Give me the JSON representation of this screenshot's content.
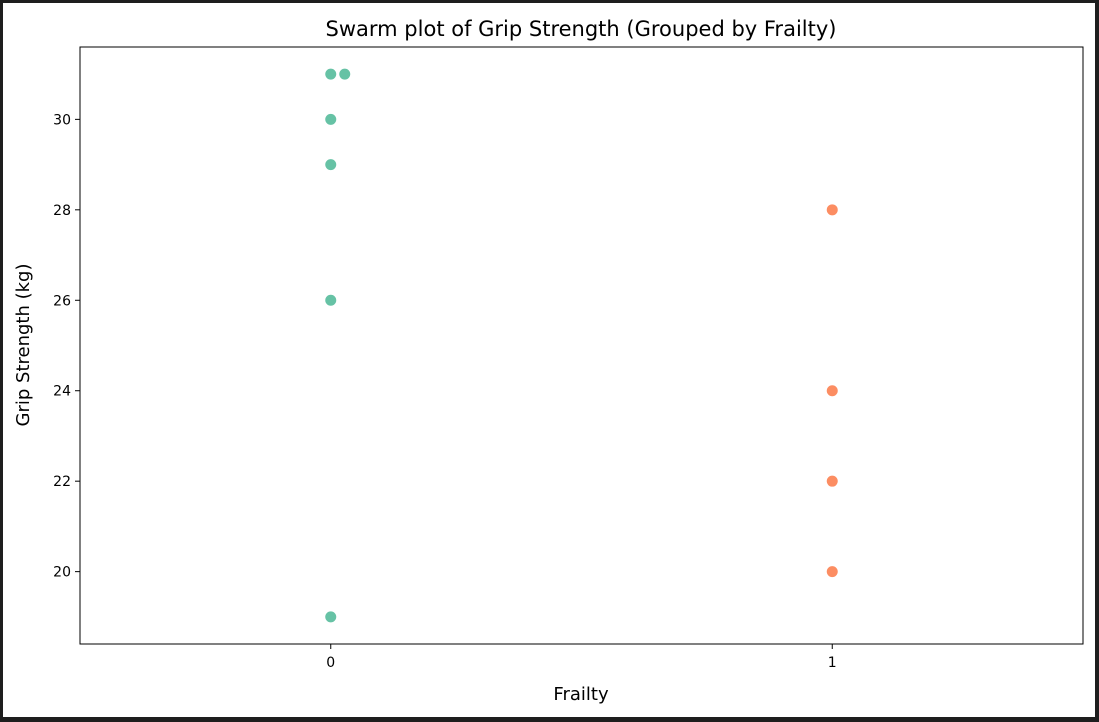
{
  "chart_data": {
    "type": "scatter",
    "subtype": "swarm",
    "title": "Swarm plot of Grip Strength (Grouped by Frailty)",
    "xlabel": "Frailty",
    "ylabel": "Grip Strength (kg)",
    "categories": [
      "0",
      "1"
    ],
    "ylim": [
      18.4,
      31.6
    ],
    "yticks": [
      20,
      22,
      24,
      26,
      28,
      30
    ],
    "ytick_labels": [
      "20",
      "22",
      "24",
      "26",
      "28",
      "30"
    ],
    "grid": false,
    "legend": "none",
    "series": [
      {
        "category": "0",
        "color": "#66c2a5",
        "values": [
          31,
          31,
          30,
          29,
          26,
          19
        ]
      },
      {
        "category": "1",
        "color": "#fc8d62",
        "values": [
          28,
          24,
          22,
          20
        ]
      }
    ]
  }
}
